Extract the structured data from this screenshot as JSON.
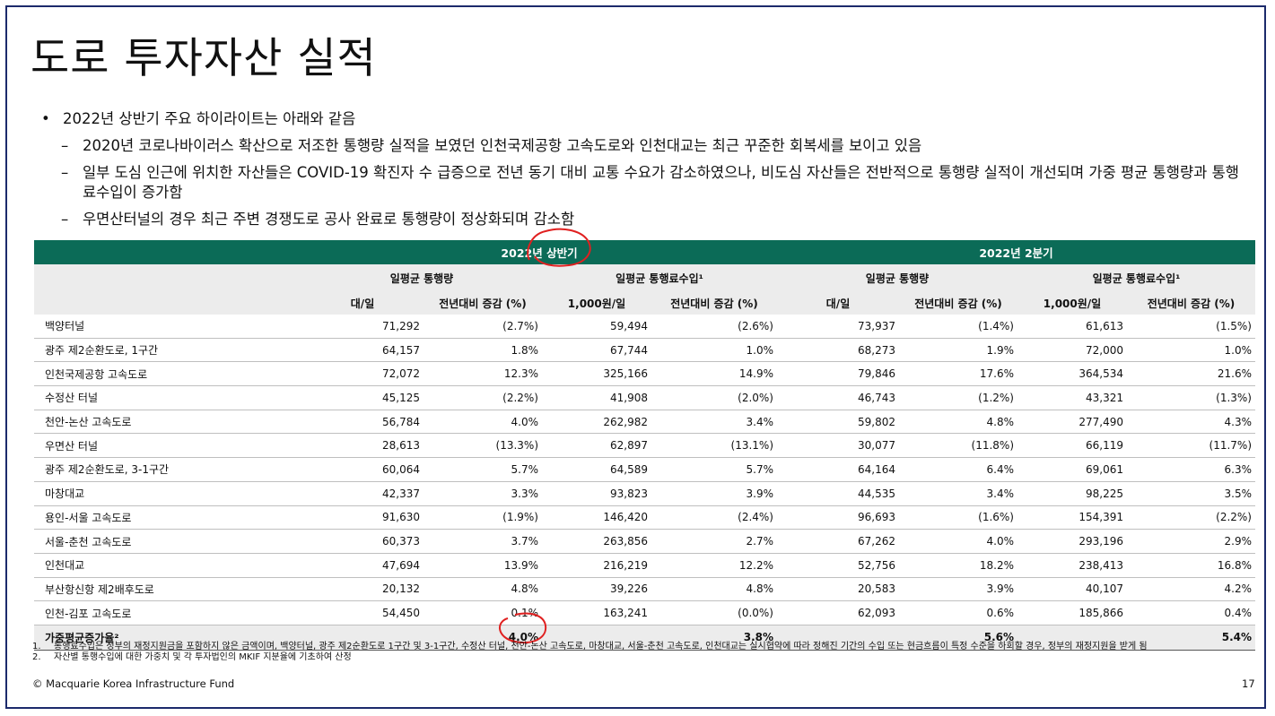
{
  "title": "도로 투자자산 실적",
  "bullets": {
    "main": "2022년 상반기 주요 하이라이트는 아래와 같음",
    "subs": [
      "2020년 코로나바이러스 확산으로 저조한 통행량 실적을 보였던 인천국제공항 고속도로와 인천대교는 최근 꾸준한 회복세를 보이고 있음",
      "일부 도심 인근에 위치한 자산들은 COVID-19 확진자 수 급증으로 전년 동기 대비 교통 수요가 감소하였으나, 비도심 자산들은 전반적으로 통행량 실적이 개선되며 가중 평균 통행량과 통행료수입이 증가함",
      "우면산터널의 경우 최근 주변 경쟁도로 공사 완료로 통행량이 정상화되며 감소함"
    ],
    "dash": "–"
  },
  "table": {
    "period_headers": [
      "2022년 상반기",
      "2022년 2분기"
    ],
    "group_headers": [
      "일평균 통행량",
      "일평균 통행료수입¹",
      "일평균 통행량",
      "일평균 통행료수입¹"
    ],
    "unit_headers": [
      "대/일",
      "전년대비 증감 (%)",
      "1,000원/일",
      "전년대비 증감 (%)",
      "대/일",
      "전년대비 증감 (%)",
      "1,000원/일",
      "전년대비 증감 (%)"
    ],
    "rows": [
      {
        "name": "백양터널",
        "values": [
          "71,292",
          "(2.7%)",
          "59,494",
          "(2.6%)",
          "73,937",
          "(1.4%)",
          "61,613",
          "(1.5%)"
        ]
      },
      {
        "name": "광주 제2순환도로, 1구간",
        "values": [
          "64,157",
          "1.8%",
          "67,744",
          "1.0%",
          "68,273",
          "1.9%",
          "72,000",
          "1.0%"
        ]
      },
      {
        "name": "인천국제공항 고속도로",
        "values": [
          "72,072",
          "12.3%",
          "325,166",
          "14.9%",
          "79,846",
          "17.6%",
          "364,534",
          "21.6%"
        ]
      },
      {
        "name": "수정산 터널",
        "values": [
          "45,125",
          "(2.2%)",
          "41,908",
          "(2.0%)",
          "46,743",
          "(1.2%)",
          "43,321",
          "(1.3%)"
        ]
      },
      {
        "name": "천안-논산 고속도로",
        "values": [
          "56,784",
          "4.0%",
          "262,982",
          "3.4%",
          "59,802",
          "4.8%",
          "277,490",
          "4.3%"
        ]
      },
      {
        "name": "우면산 터널",
        "values": [
          "28,613",
          "(13.3%)",
          "62,897",
          "(13.1%)",
          "30,077",
          "(11.8%)",
          "66,119",
          "(11.7%)"
        ]
      },
      {
        "name": "광주 제2순환도로, 3-1구간",
        "values": [
          "60,064",
          "5.7%",
          "64,589",
          "5.7%",
          "64,164",
          "6.4%",
          "69,061",
          "6.3%"
        ]
      },
      {
        "name": "마창대교",
        "values": [
          "42,337",
          "3.3%",
          "93,823",
          "3.9%",
          "44,535",
          "3.4%",
          "98,225",
          "3.5%"
        ]
      },
      {
        "name": "용인-서울 고속도로",
        "values": [
          "91,630",
          "(1.9%)",
          "146,420",
          "(2.4%)",
          "96,693",
          "(1.6%)",
          "154,391",
          "(2.2%)"
        ]
      },
      {
        "name": "서울-춘천 고속도로",
        "values": [
          "60,373",
          "3.7%",
          "263,856",
          "2.7%",
          "67,262",
          "4.0%",
          "293,196",
          "2.9%"
        ]
      },
      {
        "name": "인천대교",
        "values": [
          "47,694",
          "13.9%",
          "216,219",
          "12.2%",
          "52,756",
          "18.2%",
          "238,413",
          "16.8%"
        ]
      },
      {
        "name": "부산항신항 제2배후도로",
        "values": [
          "20,132",
          "4.8%",
          "39,226",
          "4.8%",
          "20,583",
          "3.9%",
          "40,107",
          "4.2%"
        ]
      },
      {
        "name": "인천-김포 고속도로",
        "values": [
          "54,450",
          "0.1%",
          "163,241",
          "(0.0%)",
          "62,093",
          "0.6%",
          "185,866",
          "0.4%"
        ]
      }
    ],
    "total": {
      "name": "가중평균증가율²",
      "values": [
        "",
        "4.0%",
        "",
        "3.8%",
        "",
        "5.6%",
        "",
        "5.4%"
      ]
    }
  },
  "notes": [
    {
      "num": "1.",
      "text": "통행료수입은 정부의 재정지원금을 포함하지 않은 금액이며, 백양터널, 광주 제2순환도로 1구간 및 3-1구간, 수정산 터널, 천안-논산 고속도로, 마창대교, 서울-춘천 고속도로, 인천대교는 실시협약에 따라 정해진 기간의 수입 또는 현금흐름이 특정 수준을 하회할 경우, 정부의 재정지원을 받게 됨"
    },
    {
      "num": "2.",
      "text": "자산별 통행수입에 대한 가중치 및 각 투자법인의 MKIF 지분율에 기초하여 산정"
    }
  ],
  "footer": {
    "copyright": "© Macquarie Korea Infrastructure Fund",
    "page": "17"
  },
  "colors": {
    "header_green": "#0b6b57",
    "header_gray": "#ececec",
    "frame": "#1c2a6b",
    "annotation_red": "#e02020"
  }
}
